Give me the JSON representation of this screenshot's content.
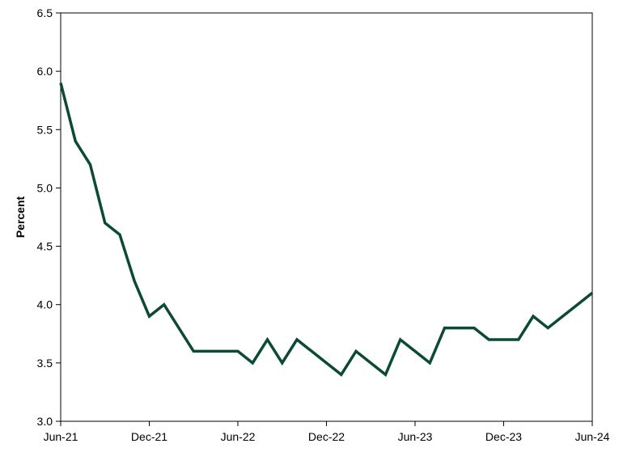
{
  "chart_data": {
    "type": "line",
    "title": "",
    "xlabel": "",
    "ylabel": "Percent",
    "ylim": [
      3.0,
      6.5
    ],
    "yticks": [
      "3.0",
      "3.5",
      "4.0",
      "4.5",
      "5.0",
      "5.5",
      "6.0",
      "6.5"
    ],
    "xticks": [
      "Jun-21",
      "Dec-21",
      "Jun-22",
      "Dec-22",
      "Jun-23",
      "Dec-23",
      "Jun-24"
    ],
    "grid": false,
    "legend": "none",
    "line_color": "#0b4a36",
    "series": [
      {
        "x": [
          "Jun-21",
          "Jul-21",
          "Aug-21",
          "Sep-21",
          "Oct-21",
          "Nov-21",
          "Dec-21",
          "Jan-22",
          "Feb-22",
          "Mar-22",
          "Apr-22",
          "May-22",
          "Jun-22",
          "Jul-22",
          "Aug-22",
          "Sep-22",
          "Oct-22",
          "Nov-22",
          "Dec-22",
          "Jan-23",
          "Feb-23",
          "Mar-23",
          "Apr-23",
          "May-23",
          "Jun-23",
          "Jul-23",
          "Aug-23",
          "Sep-23",
          "Oct-23",
          "Nov-23",
          "Dec-23",
          "Jan-24",
          "Feb-24",
          "Mar-24",
          "Apr-24",
          "May-24",
          "Jun-24"
        ],
        "values": [
          5.9,
          5.4,
          5.2,
          4.7,
          4.6,
          4.2,
          3.9,
          4.0,
          3.8,
          3.6,
          3.6,
          3.6,
          3.6,
          3.5,
          3.7,
          3.5,
          3.7,
          3.6,
          3.5,
          3.4,
          3.6,
          3.5,
          3.4,
          3.7,
          3.6,
          3.5,
          3.8,
          3.8,
          3.8,
          3.7,
          3.7,
          3.7,
          3.9,
          3.8,
          3.9,
          4.0,
          4.1
        ]
      }
    ]
  }
}
